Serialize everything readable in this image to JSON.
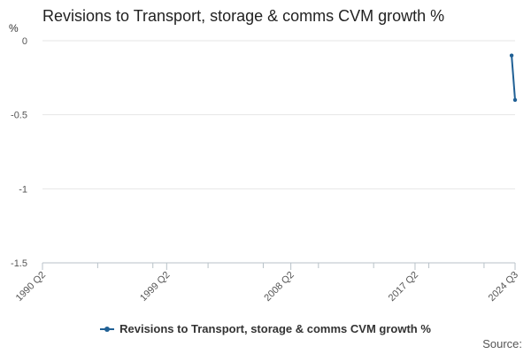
{
  "chart_data": {
    "type": "line",
    "title": "Revisions to Transport, storage & comms CVM growth %",
    "ylabel": "%",
    "xlabel": "",
    "x_tick_labels": [
      "1990 Q2",
      "1999 Q2",
      "2008 Q2",
      "2017 Q2",
      "2024 Q3"
    ],
    "y_tick_labels": [
      "0",
      "-0.5",
      "-1",
      "-1.5"
    ],
    "ylim": [
      -1.5,
      0
    ],
    "grid": "horizontal",
    "legend_position": "bottom",
    "series": [
      {
        "name": "Revisions to Transport, storage & comms CVM growth %",
        "color": "#206095",
        "points": [
          {
            "x": "2024 Q2",
            "y": -0.1
          },
          {
            "x": "2024 Q3",
            "y": -0.4
          }
        ]
      }
    ],
    "source_label": "Source:"
  }
}
